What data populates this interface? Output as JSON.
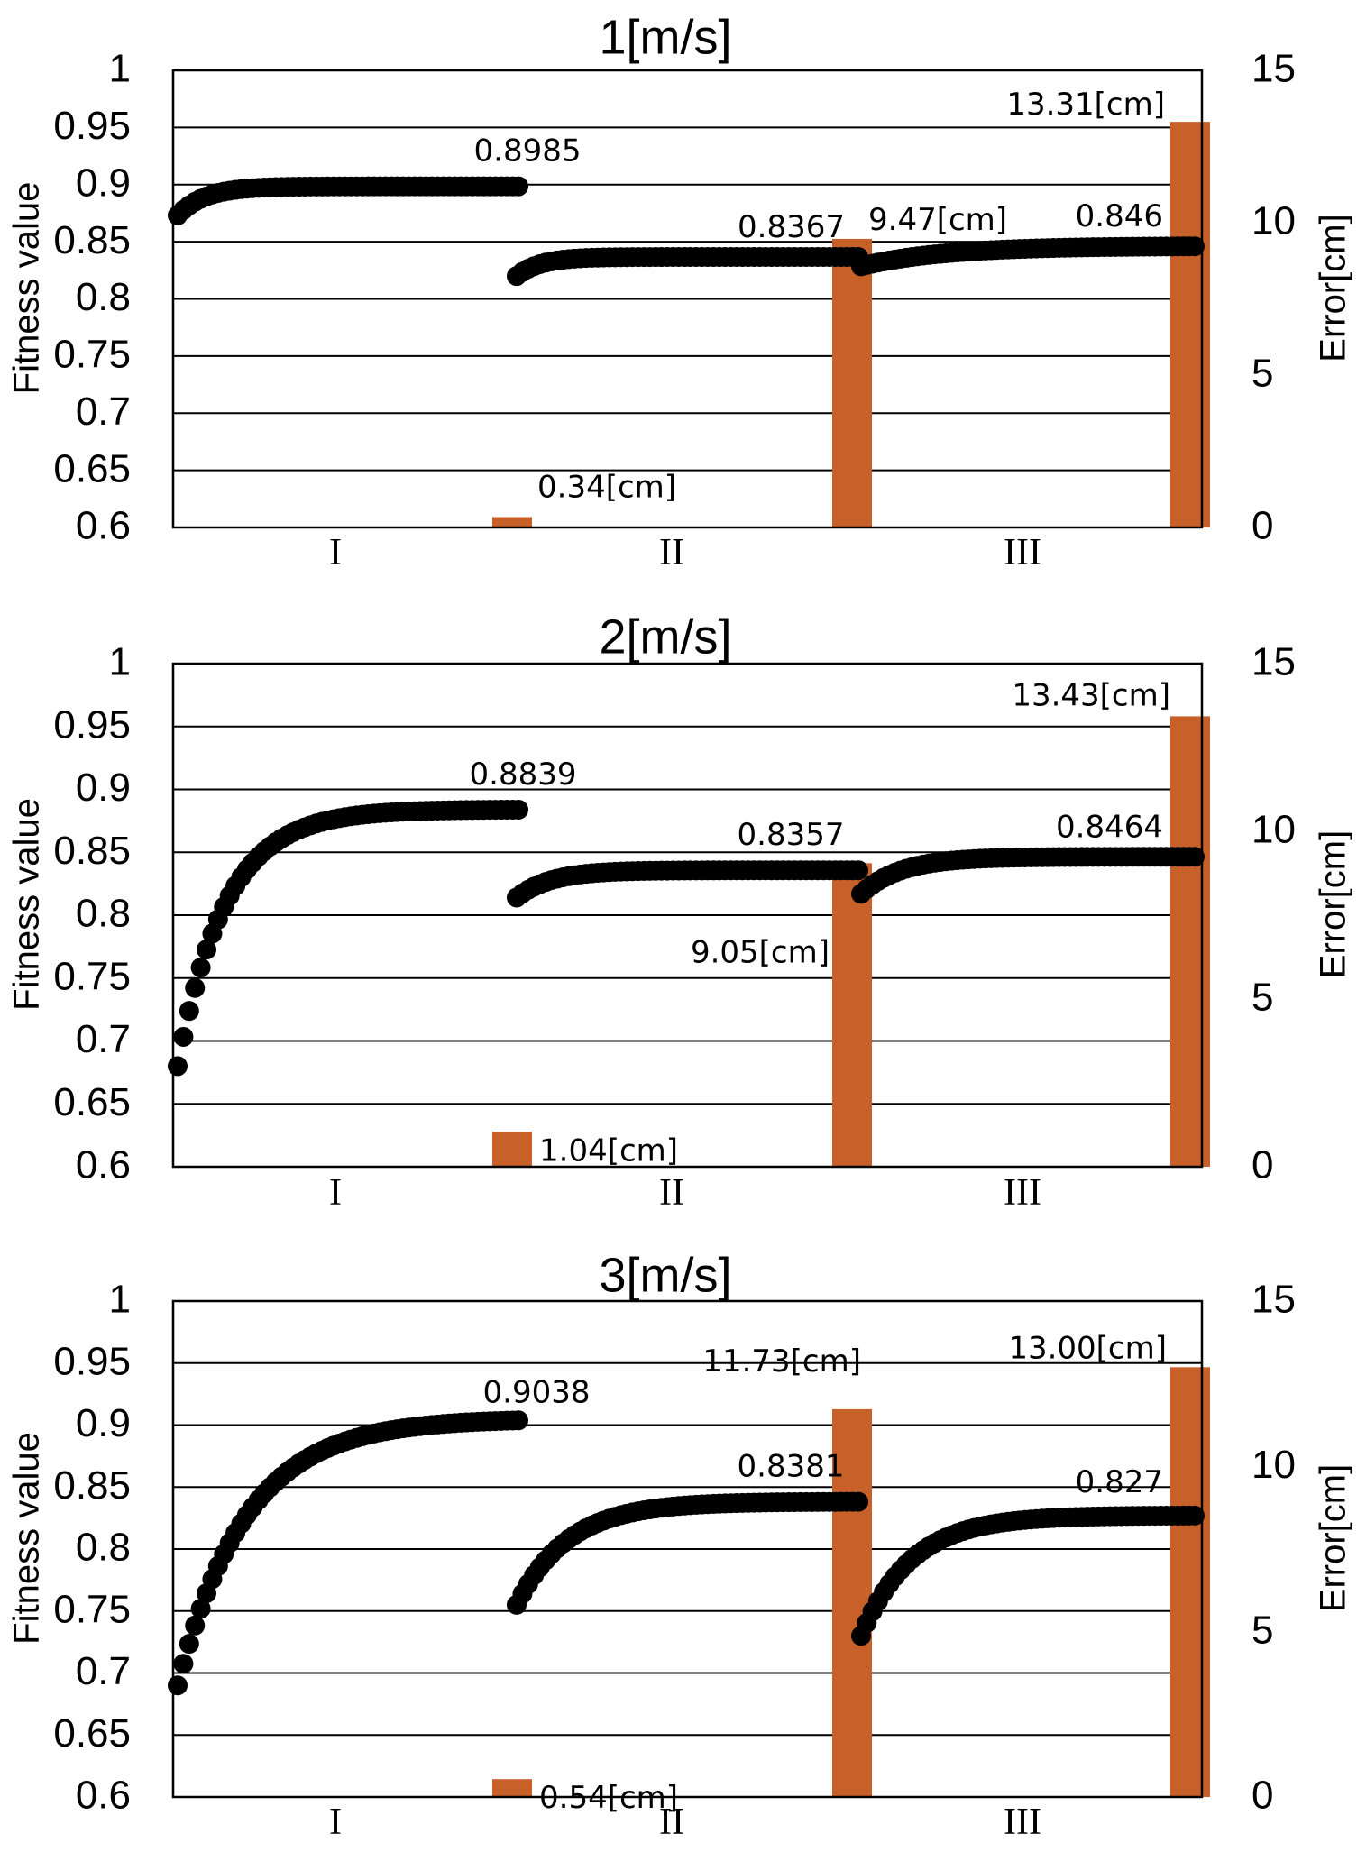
{
  "colors": {
    "bar": "#C8602A",
    "dots": "#000000",
    "grid": "#000000"
  },
  "chart_data": [
    {
      "type": "scatter+bar",
      "title": "1[m/s]",
      "ylabel": "Fitness value",
      "y2label": "Error[cm]",
      "ylim": [
        0.6,
        1
      ],
      "yticks": [
        "0.6",
        "0.65",
        "0.7",
        "0.75",
        "0.8",
        "0.85",
        "0.9",
        "0.95",
        "1"
      ],
      "y2lim": [
        0,
        15
      ],
      "y2ticks": [
        "0",
        "5",
        "10",
        "15"
      ],
      "categories": [
        "I",
        "II",
        "III"
      ],
      "grid": true,
      "series": [
        {
          "segment": "I",
          "start": 0.873,
          "end": 0.8985,
          "rate": 0.08,
          "label": "0.8985"
        },
        {
          "segment": "II",
          "start": 0.82,
          "end": 0.8367,
          "rate": 0.07,
          "label": "0.8367"
        },
        {
          "segment": "III",
          "start": 0.8285,
          "end": 0.846,
          "rate": 0.25,
          "label": "0.846"
        }
      ],
      "bars": [
        {
          "segment": "I",
          "value": 0.34,
          "label": "0.34[cm]"
        },
        {
          "segment": "II",
          "value": 9.47,
          "label": "9.47[cm]"
        },
        {
          "segment": "III",
          "value": 13.31,
          "label": "13.31[cm]"
        }
      ]
    },
    {
      "type": "scatter+bar",
      "title": "2[m/s]",
      "ylabel": "Fitness value",
      "y2label": "Error[cm]",
      "ylim": [
        0.6,
        1
      ],
      "yticks": [
        "0.6",
        "0.65",
        "0.7",
        "0.75",
        "0.8",
        "0.85",
        "0.9",
        "0.95",
        "1"
      ],
      "y2lim": [
        0,
        15
      ],
      "y2ticks": [
        "0",
        "5",
        "10",
        "15"
      ],
      "categories": [
        "I",
        "II",
        "III"
      ],
      "grid": true,
      "series": [
        {
          "segment": "I",
          "start": 0.68,
          "end": 0.8839,
          "rate": 0.14,
          "label": "0.8839"
        },
        {
          "segment": "II",
          "start": 0.814,
          "end": 0.8357,
          "rate": 0.1,
          "label": "0.8357"
        },
        {
          "segment": "III",
          "start": 0.817,
          "end": 0.8464,
          "rate": 0.12,
          "label": "0.8464"
        }
      ],
      "bars": [
        {
          "segment": "I",
          "value": 1.04,
          "label": "1.04[cm]"
        },
        {
          "segment": "II",
          "value": 9.05,
          "label": "9.05[cm]"
        },
        {
          "segment": "III",
          "value": 13.43,
          "label": "13.43[cm]"
        }
      ]
    },
    {
      "type": "scatter+bar",
      "title": "3[m/s]",
      "ylabel": "Fitness value",
      "y2label": "Error[cm]",
      "ylim": [
        0.6,
        1
      ],
      "yticks": [
        "0.6",
        "0.65",
        "0.7",
        "0.75",
        "0.8",
        "0.85",
        "0.9",
        "0.95",
        "1"
      ],
      "y2lim": [
        0,
        15
      ],
      "y2ticks": [
        "0",
        "5",
        "10",
        "15"
      ],
      "categories": [
        "I",
        "II",
        "III"
      ],
      "grid": true,
      "series": [
        {
          "segment": "I",
          "start": 0.69,
          "end": 0.9038,
          "rate": 0.2,
          "label": "0.9038"
        },
        {
          "segment": "II",
          "start": 0.755,
          "end": 0.8381,
          "rate": 0.15,
          "label": "0.8381"
        },
        {
          "segment": "III",
          "start": 0.73,
          "end": 0.827,
          "rate": 0.15,
          "label": "0.827"
        }
      ],
      "bars": [
        {
          "segment": "I",
          "value": 0.54,
          "label": "0.54[cm]"
        },
        {
          "segment": "II",
          "value": 11.73,
          "label": "11.73[cm]"
        },
        {
          "segment": "III",
          "value": 13.0,
          "label": "13.00[cm]"
        }
      ]
    }
  ]
}
